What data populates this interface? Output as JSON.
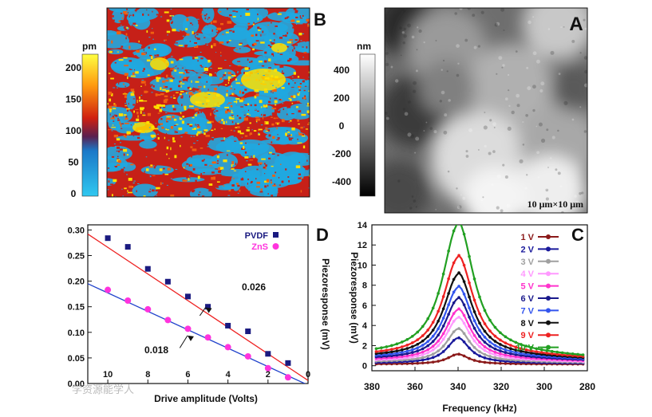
{
  "panels": {
    "A": {
      "letter": "A",
      "scale_label": "10 μm×10 μm",
      "colorbar": {
        "unit": "nm",
        "ticks": [
          "400",
          "200",
          "0",
          "-200",
          "-400"
        ]
      }
    },
    "B": {
      "letter": "B",
      "colorbar": {
        "unit": "pm",
        "ticks": [
          "200",
          "150",
          "100",
          "50",
          "0"
        ]
      },
      "colors": [
        "#20a8e0",
        "#c62018",
        "#ffe000",
        "#f06010"
      ]
    }
  },
  "watermark": "学资源能学人",
  "chart_data": [
    {
      "panel": "C",
      "type": "line",
      "letter": "C",
      "xlabel": "Frequency (kHz)",
      "ylabel": "Piezoresponse (mV)",
      "x_reversed": true,
      "xlim": [
        280,
        380
      ],
      "ylim": [
        -0.5,
        14
      ],
      "xticks": [
        "380",
        "360",
        "340",
        "320",
        "300",
        "280"
      ],
      "yticks": [
        "0",
        "2",
        "4",
        "6",
        "8",
        "10",
        "12",
        "14"
      ],
      "legend": "right",
      "resonance_khz": 340,
      "series": [
        {
          "name": "1 V",
          "color": "#8b1a1a",
          "peak": 1.0
        },
        {
          "name": "2 V",
          "color": "#1a1a9c",
          "peak": 2.5
        },
        {
          "name": "3 V",
          "color": "#a0a0a0",
          "peak": 3.3
        },
        {
          "name": "4 V",
          "color": "#ff99ff",
          "peak": 4.3
        },
        {
          "name": "5 V",
          "color": "#ff33cc",
          "peak": 5.0
        },
        {
          "name": "6 V",
          "color": "#1a1a8c",
          "peak": 6.0
        },
        {
          "name": "7 V",
          "color": "#3355ee",
          "peak": 7.0
        },
        {
          "name": "8 V",
          "color": "#111111",
          "peak": 8.2
        },
        {
          "name": "9 V",
          "color": "#ee2222",
          "peak": 9.8
        },
        {
          "name": "10 V",
          "color": "#22a022",
          "peak": 13.0
        }
      ]
    },
    {
      "panel": "D",
      "type": "scatter",
      "letter": "D",
      "xlabel": "Drive amplitude (Volts)",
      "ylabel": "Piezoresponse (mV)",
      "x_reversed": true,
      "xlim": [
        0,
        11
      ],
      "ylim": [
        0,
        0.31
      ],
      "xticks": [
        "10",
        "8",
        "6",
        "4",
        "2",
        "0"
      ],
      "yticks": [
        "0.00",
        "0.05",
        "0.10",
        "0.15",
        "0.20",
        "0.25",
        "0.30"
      ],
      "legend": "top-right",
      "series": [
        {
          "name": "PVDF",
          "color": "#1a1a80",
          "marker": "square",
          "x": [
            10,
            9,
            8,
            7,
            6,
            5,
            4,
            3,
            2,
            1
          ],
          "y": [
            0.284,
            0.267,
            0.224,
            0.199,
            0.17,
            0.15,
            0.113,
            0.102,
            0.058,
            0.04
          ],
          "fit": {
            "slope": 0.026,
            "intercept": 0.006,
            "color": "#ee2222"
          },
          "annotation": "0.026"
        },
        {
          "name": "ZnS",
          "color": "#ff33dd",
          "marker": "circle",
          "x": [
            10,
            9,
            8,
            7,
            6,
            5,
            4,
            3,
            2,
            1
          ],
          "y": [
            0.183,
            0.162,
            0.145,
            0.124,
            0.107,
            0.09,
            0.071,
            0.053,
            0.03,
            0.012
          ],
          "fit": {
            "slope": 0.018,
            "intercept": -0.003,
            "color": "#2244cc"
          },
          "annotation": "0.018"
        }
      ]
    }
  ]
}
